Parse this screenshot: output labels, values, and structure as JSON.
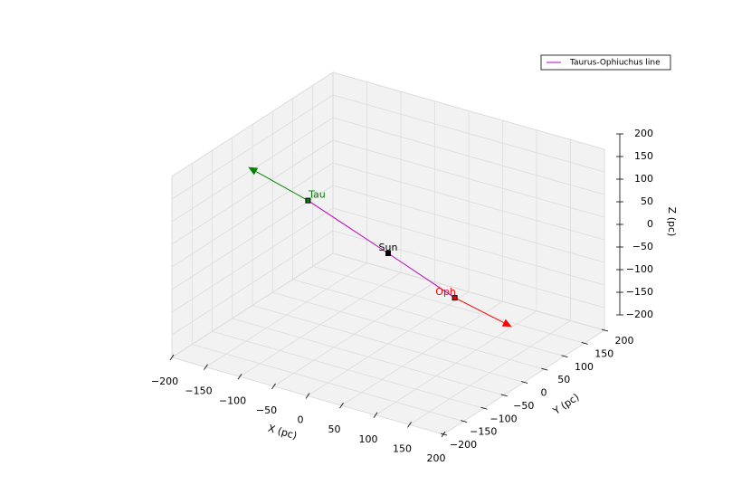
{
  "chart_data": {
    "type": "line3d",
    "xlabel": "X (pc)",
    "ylabel": "Y (pc)",
    "zlabel": "Z (pc)",
    "xlim": [
      -200,
      200
    ],
    "ylim": [
      -200,
      200
    ],
    "zlim": [
      -200,
      200
    ],
    "xticks": [
      {
        "value": -200,
        "label": "−200"
      },
      {
        "value": -150,
        "label": "−150"
      },
      {
        "value": -100,
        "label": "−100"
      },
      {
        "value": -50,
        "label": "−50"
      },
      0,
      50,
      100,
      150,
      200
    ],
    "yticks": [
      {
        "value": -200,
        "label": "−200"
      },
      {
        "value": -150,
        "label": "−150"
      },
      {
        "value": -100,
        "label": "−100"
      },
      {
        "value": -50,
        "label": "−50"
      },
      0,
      50,
      100,
      150,
      200
    ],
    "zticks": [
      {
        "value": -200,
        "label": "−200"
      },
      {
        "value": -150,
        "label": "−150"
      },
      {
        "value": -100,
        "label": "−100"
      },
      {
        "value": -50,
        "label": "−50"
      },
      0,
      50,
      100,
      150,
      200
    ],
    "grid": true,
    "legend": "upper right",
    "series": [
      {
        "name": "Taurus-Ophiuchus line",
        "color": "#bf00bf",
        "x": [
          -130,
          0,
          110
        ],
        "y": [
          20,
          0,
          -20
        ],
        "z": [
          50,
          0,
          -40
        ]
      }
    ],
    "points": [
      {
        "label": "Tau",
        "color": "green",
        "x": -130,
        "y": 20,
        "z": 50,
        "arrow_to": {
          "x": -230,
          "y": 40,
          "z": 70
        }
      },
      {
        "label": "Sun",
        "color": "black",
        "x": 0,
        "y": 0,
        "z": 0
      },
      {
        "label": "Oph",
        "color": "red",
        "x": 110,
        "y": -20,
        "z": -40,
        "arrow_to": {
          "x": 200,
          "y": -30,
          "z": -60
        }
      }
    ]
  }
}
